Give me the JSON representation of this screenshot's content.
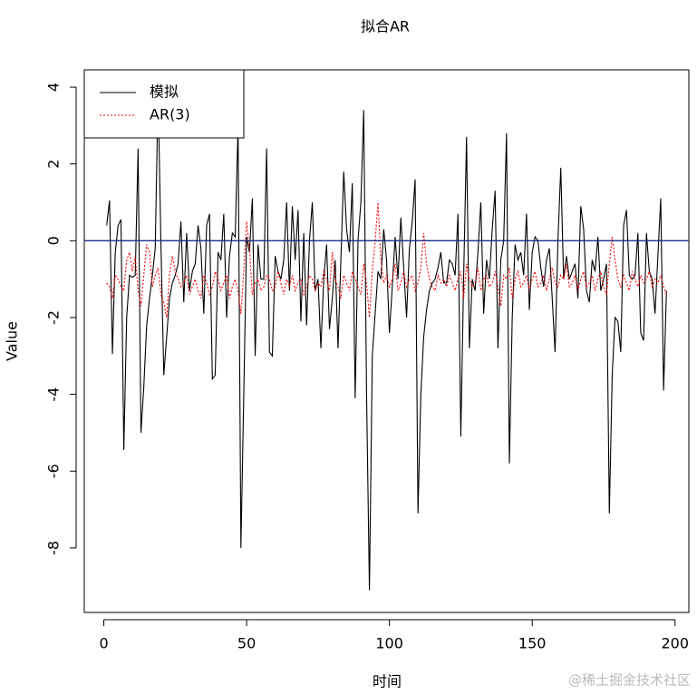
{
  "chart_data": {
    "type": "line",
    "title": "拟合AR",
    "xlabel": "时间",
    "ylabel": "Value",
    "x": [
      1,
      2,
      3,
      4,
      5,
      6,
      7,
      8,
      9,
      10,
      11,
      12,
      13,
      14,
      15,
      16,
      17,
      18,
      19,
      20,
      21,
      22,
      23,
      24,
      25,
      26,
      27,
      28,
      29,
      30,
      31,
      32,
      33,
      34,
      35,
      36,
      37,
      38,
      39,
      40,
      41,
      42,
      43,
      44,
      45,
      46,
      47,
      48,
      49,
      50,
      51,
      52,
      53,
      54,
      55,
      56,
      57,
      58,
      59,
      60,
      61,
      62,
      63,
      64,
      65,
      66,
      67,
      68,
      69,
      70,
      71,
      72,
      73,
      74,
      75,
      76,
      77,
      78,
      79,
      80,
      81,
      82,
      83,
      84,
      85,
      86,
      87,
      88,
      89,
      90,
      91,
      92,
      93,
      94,
      95,
      96,
      97,
      98,
      99,
      100,
      101,
      102,
      103,
      104,
      105,
      106,
      107,
      108,
      109,
      110,
      111,
      112,
      113,
      114,
      115,
      116,
      117,
      118,
      119,
      120,
      121,
      122,
      123,
      124,
      125,
      126,
      127,
      128,
      129,
      130,
      131,
      132,
      133,
      134,
      135,
      136,
      137,
      138,
      139,
      140,
      141,
      142,
      143,
      144,
      145,
      146,
      147,
      148,
      149,
      150,
      151,
      152,
      153,
      154,
      155,
      156,
      157,
      158,
      159,
      160,
      161,
      162,
      163,
      164,
      165,
      166,
      167,
      168,
      169,
      170,
      171,
      172,
      173,
      174,
      175,
      176,
      177,
      178,
      179,
      180,
      181,
      182,
      183,
      184,
      185,
      186,
      187,
      188,
      189,
      190,
      191,
      192,
      193,
      194,
      195,
      196,
      197
    ],
    "series": [
      {
        "name": "模拟",
        "color": "#000000",
        "dash": false,
        "values": [
          0.4,
          1.05,
          -2.95,
          -0.3,
          0.4,
          0.55,
          -5.45,
          -2.0,
          -0.9,
          -0.95,
          -0.9,
          2.4,
          -5.0,
          -3.8,
          -2.2,
          -1.5,
          -0.9,
          -0.2,
          3.9,
          -0.1,
          -3.5,
          -2.5,
          -1.5,
          -1.1,
          -0.9,
          -0.6,
          0.5,
          -1.6,
          0.2,
          -1.3,
          -0.8,
          -0.6,
          0.4,
          -0.2,
          -1.9,
          0.4,
          0.7,
          -3.6,
          -3.5,
          -0.3,
          -0.5,
          0.7,
          -2.0,
          -0.4,
          0.2,
          0.1,
          3.0,
          -8.0,
          -4.0,
          0.1,
          -0.3,
          1.1,
          -3.0,
          -0.1,
          -1.0,
          -1.0,
          2.4,
          -2.9,
          -3.0,
          -0.4,
          -0.8,
          -1.0,
          -0.5,
          1.0,
          -1.3,
          0.9,
          -0.5,
          0.8,
          -2.1,
          0.2,
          -2.2,
          0.0,
          1.0,
          -1.3,
          -1.0,
          -2.8,
          -1.0,
          -0.1,
          -2.3,
          -1.5,
          -0.5,
          -2.8,
          -0.5,
          1.8,
          0.3,
          -0.3,
          1.5,
          -4.1,
          0.0,
          1.0,
          3.4,
          -4.0,
          -9.1,
          -3.0,
          -1.9,
          -0.8,
          -1.0,
          0.3,
          -0.5,
          -2.4,
          -1.2,
          0.1,
          -1.0,
          0.6,
          -0.7,
          -2.0,
          -0.2,
          0.5,
          1.6,
          -7.1,
          -4.0,
          -2.5,
          -1.8,
          -1.3,
          -1.1,
          -1.0,
          -0.7,
          -0.3,
          -1.1,
          -1.1,
          -0.5,
          -0.6,
          -0.9,
          0.7,
          -5.1,
          -0.9,
          2.7,
          -2.8,
          -1.0,
          -1.3,
          -0.3,
          1.0,
          -1.9,
          -0.5,
          -1.0,
          0.3,
          1.3,
          -2.8,
          -0.5,
          0.0,
          2.8,
          -5.8,
          -2.0,
          -0.1,
          -0.5,
          -0.3,
          -0.9,
          0.7,
          -1.8,
          -0.3,
          0.1,
          0.0,
          -0.7,
          -1.2,
          -0.5,
          -0.2,
          -1.5,
          -2.9,
          0.0,
          1.9,
          -1.0,
          -0.4,
          -1.0,
          -0.8,
          -0.6,
          -1.5,
          0.9,
          0.3,
          -1.3,
          -1.6,
          -0.5,
          -0.8,
          0.1,
          -1.3,
          -1.0,
          -0.6,
          -7.1,
          -3.5,
          -2.0,
          -2.1,
          -2.9,
          0.4,
          0.8,
          -0.9,
          -1.0,
          -0.9,
          0.2,
          -2.4,
          -2.6,
          0.2,
          -0.8,
          -1.0,
          -1.9,
          -0.4,
          1.1,
          -3.9,
          -1.3
        ]
      },
      {
        "name": "AR(3)",
        "color": "#ff0000",
        "dash": true,
        "values": [
          -1.1,
          -1.2,
          -1.5,
          -0.9,
          -1.0,
          -1.2,
          -1.3,
          -0.5,
          -0.3,
          -0.8,
          -0.4,
          -1.3,
          -1.7,
          -0.9,
          -0.1,
          -0.3,
          -1.2,
          -0.9,
          -0.7,
          -1.4,
          -1.6,
          -2.0,
          -0.9,
          -0.4,
          -0.8,
          -1.0,
          -1.2,
          -1.1,
          -0.9,
          -1.4,
          -1.2,
          -1.0,
          -1.3,
          -1.5,
          -0.9,
          -1.1,
          -1.4,
          -1.2,
          -0.8,
          -1.0,
          -1.3,
          -1.1,
          -0.9,
          -1.5,
          -1.2,
          -1.0,
          -1.3,
          -1.9,
          -0.8,
          0.5,
          -0.2,
          -1.4,
          -1.1,
          -1.0,
          -1.3,
          -1.2,
          -0.9,
          -1.0,
          -1.3,
          -1.2,
          -0.8,
          -1.1,
          -1.4,
          -1.0,
          -1.2,
          -0.9,
          -1.3,
          -1.1,
          -1.0,
          -1.4,
          -1.2,
          -0.9,
          -1.0,
          -1.3,
          -1.1,
          -1.2,
          -0.8,
          -1.0,
          -1.3,
          -0.3,
          -1.0,
          -1.2,
          -1.5,
          -0.9,
          -1.1,
          -1.3,
          -0.8,
          -1.0,
          -1.2,
          -1.4,
          -0.6,
          -1.1,
          -2.0,
          -0.8,
          0.0,
          1.0,
          -0.5,
          -1.1,
          -0.9,
          -1.2,
          -1.0,
          -0.6,
          -1.3,
          -1.1,
          -0.8,
          -1.2,
          -1.0,
          -0.9,
          -1.3,
          -1.1,
          -0.7,
          0.2,
          -0.6,
          -1.0,
          -1.2,
          -1.3,
          -0.9,
          -1.1,
          -1.0,
          -1.2,
          -0.9,
          -1.1,
          -1.3,
          -1.0,
          -0.8,
          -1.5,
          -0.6,
          -1.0,
          -1.2,
          -1.1,
          -0.7,
          -1.3,
          -1.0,
          -0.9,
          -1.2,
          -1.1,
          -0.8,
          -1.2,
          -1.7,
          -0.9,
          -1.0,
          -0.7,
          -1.5,
          -1.0,
          -0.8,
          -1.2,
          -1.1,
          -0.9,
          -1.3,
          -1.0,
          -0.8,
          -1.2,
          -1.1,
          -0.9,
          -1.3,
          -1.0,
          -0.7,
          -1.1,
          -1.2,
          -0.9,
          -1.0,
          -0.6,
          -1.2,
          -1.1,
          -0.9,
          -1.3,
          -1.0,
          -0.8,
          -1.2,
          -1.1,
          -0.9,
          -1.3,
          -1.0,
          -0.8,
          -1.2,
          -1.4,
          -0.6,
          0.1,
          -0.5,
          -1.0,
          -1.2,
          -0.9,
          -1.1,
          -1.3,
          -0.8,
          -1.0,
          -1.2,
          -0.9,
          -1.1,
          -1.0,
          -0.8,
          -1.2,
          -1.0,
          -1.1,
          -0.9,
          -1.2,
          -1.4
        ]
      }
    ],
    "hline": {
      "value": 0,
      "color": "#1a2c8c"
    },
    "xlim": [
      -6.84,
      204.84
    ],
    "ylim": [
      -9.68,
      4.45
    ],
    "xticks": [
      0,
      50,
      100,
      150,
      200
    ],
    "yticks": [
      -8,
      -6,
      -4,
      -2,
      0,
      2,
      4
    ],
    "legend": "top-left",
    "watermark": "@稀土掘金技术社区"
  }
}
